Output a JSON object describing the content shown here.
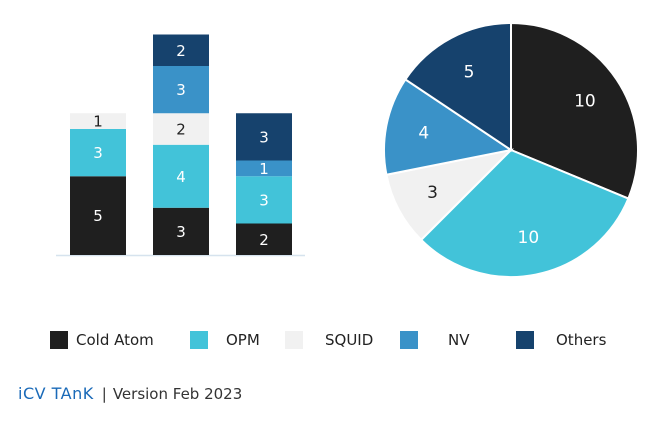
{
  "chart_data": [
    {
      "type": "bar",
      "stacked": true,
      "categories": [
        "",
        "",
        ""
      ],
      "series": [
        {
          "name": "Cold Atom",
          "color": "#1f1f1f",
          "values": [
            5,
            3,
            2
          ]
        },
        {
          "name": "OPM",
          "color": "#42c3d9",
          "values": [
            3,
            4,
            3
          ]
        },
        {
          "name": "SQUID",
          "color": "#f1f1f1",
          "values": [
            1,
            2,
            0
          ]
        },
        {
          "name": "NV",
          "color": "#3a92c8",
          "values": [
            0,
            3,
            1
          ]
        },
        {
          "name": "Others",
          "color": "#16426d",
          "values": [
            0,
            2,
            3
          ]
        }
      ],
      "ylim": [
        0,
        14
      ],
      "grid": false
    },
    {
      "type": "pie",
      "slices": [
        {
          "name": "Cold Atom",
          "value": 10,
          "color": "#1f1f1f"
        },
        {
          "name": "OPM",
          "value": 10,
          "color": "#42c3d9"
        },
        {
          "name": "SQUID",
          "value": 3,
          "color": "#f1f1f1"
        },
        {
          "name": "NV",
          "value": 4,
          "color": "#3a92c8"
        },
        {
          "name": "Others",
          "value": 5,
          "color": "#16426d"
        }
      ]
    }
  ],
  "legend": {
    "placement": "bottom",
    "items": [
      {
        "label": "Cold Atom",
        "color": "#1f1f1f"
      },
      {
        "label": "OPM",
        "color": "#42c3d9"
      },
      {
        "label": "SQUID",
        "color": "#f1f1f1"
      },
      {
        "label": "NV",
        "color": "#3a92c8"
      },
      {
        "label": "Others",
        "color": "#16426d"
      }
    ]
  },
  "footer": {
    "brand": "iCV TAnK",
    "separator": "|",
    "version": "Version Feb 2023"
  }
}
